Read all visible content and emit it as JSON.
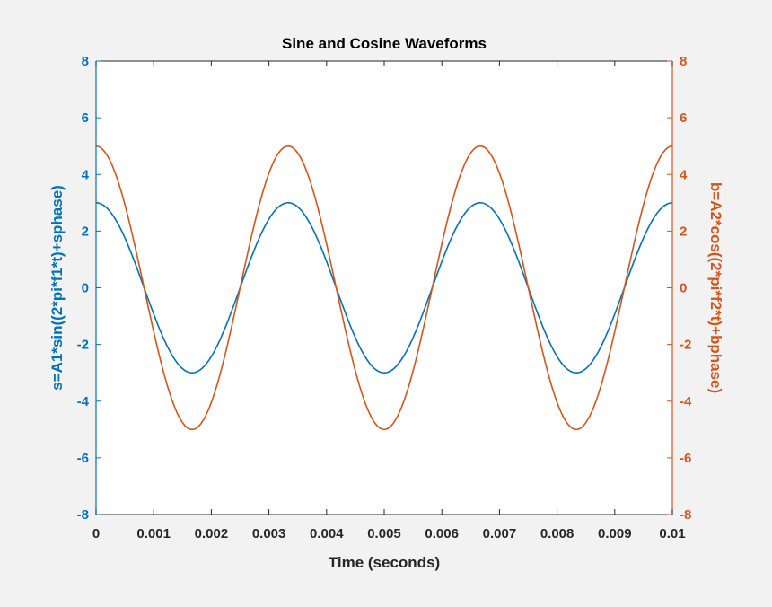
{
  "chart_data": {
    "type": "line",
    "title": "Sine and Cosine Waveforms",
    "xlabel": "Time (seconds)",
    "ylabel_left": "s=A1*sin((2*pi*f1*t)+sphase)",
    "ylabel_right": "b=A2*cos((2*pi*f2*t)+bphase)",
    "xlim": [
      0,
      0.01
    ],
    "ylim_left": [
      -8,
      8
    ],
    "ylim_right": [
      -8,
      8
    ],
    "x_ticks": [
      "0",
      "0.001",
      "0.002",
      "0.003",
      "0.004",
      "0.005",
      "0.006",
      "0.007",
      "0.008",
      "0.009",
      "0.01"
    ],
    "y_ticks_left": [
      "8",
      "6",
      "4",
      "2",
      "0",
      "-2",
      "-4",
      "-6",
      "-8"
    ],
    "y_ticks_right": [
      "8",
      "6",
      "4",
      "2",
      "0",
      "-2",
      "-4",
      "-6",
      "-8"
    ],
    "grid": false,
    "series": [
      {
        "axis": "left",
        "color": "#0072BD",
        "x": [
          0,
          0.0005,
          0.001,
          0.0015,
          0.00167,
          0.002,
          0.0025,
          0.003,
          0.00333,
          0.0035,
          0.004,
          0.0045,
          0.005,
          0.0055,
          0.006,
          0.0065,
          0.00667,
          0.007,
          0.0075,
          0.008,
          0.00833,
          0.0085,
          0.009,
          0.0095,
          0.01
        ],
        "y": [
          3.0,
          1.76,
          -0.62,
          -2.85,
          -3.0,
          -2.43,
          0.0,
          2.43,
          3.0,
          2.85,
          0.62,
          -1.76,
          -3.0,
          -1.76,
          0.62,
          2.85,
          3.0,
          2.43,
          0.0,
          -2.43,
          -3.0,
          -2.85,
          -0.62,
          1.76,
          3.0
        ]
      },
      {
        "axis": "right",
        "color": "#D95319",
        "x": [
          0,
          0.0005,
          0.001,
          0.0015,
          0.00167,
          0.002,
          0.0025,
          0.003,
          0.00333,
          0.0035,
          0.004,
          0.0045,
          0.005,
          0.0055,
          0.006,
          0.0065,
          0.00667,
          0.007,
          0.0075,
          0.008,
          0.00833,
          0.0085,
          0.009,
          0.0095,
          0.01
        ],
        "y": [
          5.0,
          2.94,
          -1.04,
          -4.76,
          -5.0,
          -4.05,
          0.0,
          4.05,
          5.0,
          4.76,
          1.04,
          -2.94,
          -5.0,
          -2.94,
          1.04,
          4.76,
          5.0,
          4.05,
          0.0,
          -4.05,
          -5.0,
          -4.76,
          -1.04,
          2.94,
          5.0
        ]
      }
    ]
  },
  "colors": {
    "left_axis": "#0072BD",
    "right_axis": "#D95319",
    "bottom_axis": "#262626",
    "plot_background": "#ffffff",
    "figure_background": "#f2f2f2"
  }
}
